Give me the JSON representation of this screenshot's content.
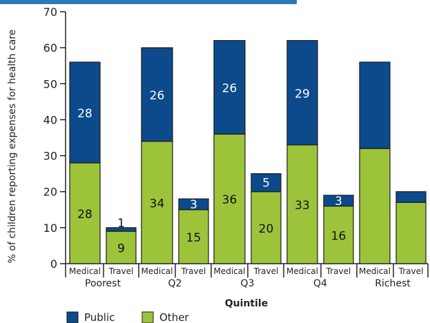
{
  "chart_data": {
    "type": "bar",
    "stacked": true,
    "ylabel": "% of children  reporting expenses for health care",
    "xlabel": "Quintile",
    "ylim": [
      0,
      70
    ],
    "yticks": [
      0,
      10,
      20,
      30,
      40,
      50,
      60,
      70
    ],
    "groups": [
      "Poorest",
      "Q2",
      "Q3",
      "Q4",
      "Richest"
    ],
    "subcategories": [
      "Medical",
      "Travel"
    ],
    "categories": [
      "Medical",
      "Travel",
      "Medical",
      "Travel",
      "Medical",
      "Travel",
      "Medical",
      "Travel",
      "Medical",
      "Travel"
    ],
    "series": [
      {
        "name": "Other",
        "color": "#9dc33b",
        "values": [
          28,
          9,
          34,
          15,
          36,
          20,
          33,
          16,
          32,
          17
        ],
        "labels": [
          "28",
          "9",
          "34",
          "15",
          "36",
          "20",
          "33",
          "16",
          "",
          ""
        ]
      },
      {
        "name": "Public",
        "color": "#0d4a8c",
        "values": [
          28,
          1,
          26,
          3,
          26,
          5,
          29,
          3,
          24,
          3
        ],
        "labels": [
          "28",
          "1",
          "26",
          "3",
          "26",
          "5",
          "29",
          "3",
          "",
          ""
        ]
      }
    ],
    "legend": {
      "position": "bottom-left",
      "items": [
        "Public",
        "Other"
      ]
    },
    "grid": false
  }
}
